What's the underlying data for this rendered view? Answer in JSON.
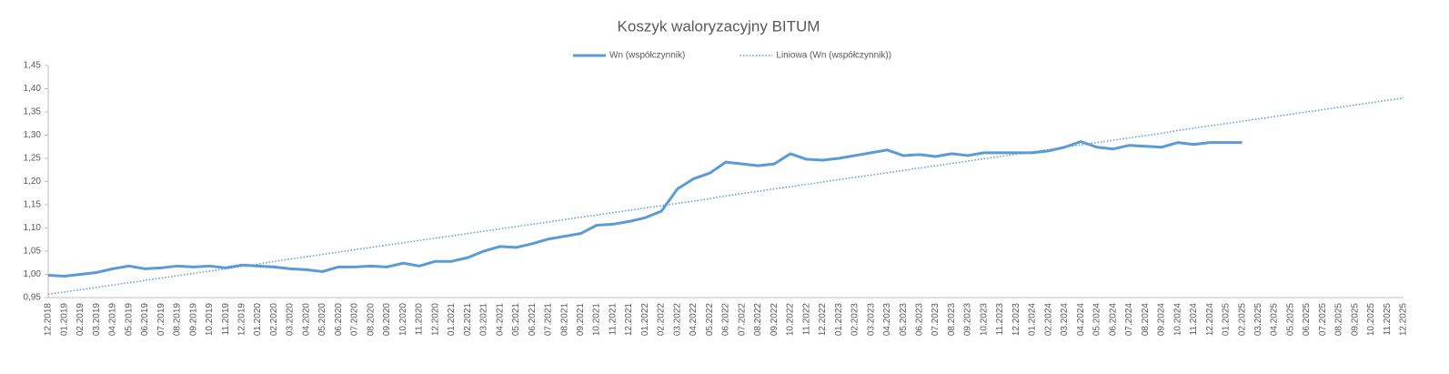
{
  "chart_data": {
    "type": "line",
    "title": "Koszyk waloryzacyjny BITUM",
    "categories": [
      "12.2018",
      "01.2019",
      "02.2019",
      "03.2019",
      "04.2019",
      "05.2019",
      "06.2019",
      "07.2019",
      "08.2019",
      "09.2019",
      "10.2019",
      "11.2019",
      "12.2019",
      "01.2020",
      "02.2020",
      "03.2020",
      "04.2020",
      "05.2020",
      "06.2020",
      "07.2020",
      "08.2020",
      "09.2020",
      "10.2020",
      "11.2020",
      "12.2020",
      "01.2021",
      "02.2021",
      "03.2021",
      "04.2021",
      "05.2021",
      "06.2021",
      "07.2021",
      "08.2021",
      "09.2021",
      "10.2021",
      "11.2021",
      "12.2021",
      "01.2022",
      "02.2022",
      "03.2022",
      "04.2022",
      "05.2022",
      "06.2022",
      "07.2022",
      "08.2022",
      "09.2022",
      "10.2022",
      "11.2022",
      "12.2022",
      "01.2023",
      "02.2023",
      "03.2023",
      "04.2023",
      "05.2023",
      "06.2023",
      "07.2023",
      "08.2023",
      "09.2023",
      "10.2023",
      "11.2023",
      "12.2023",
      "01.2024",
      "02.2024",
      "03.2024",
      "04.2024",
      "05.2024",
      "06.2024",
      "07.2024",
      "08.2024",
      "09.2024",
      "10.2024",
      "11.2024",
      "12.2024",
      "01.2025",
      "02.2025",
      "03.2025",
      "04.2025",
      "05.2025",
      "06.2025",
      "07.2025",
      "08.2025",
      "09.2025",
      "10.2025",
      "11.2025",
      "12.2025"
    ],
    "series": [
      {
        "name": "Wn (współczynnik)",
        "color": "#5b9bd5",
        "style": "solid",
        "values": [
          0.998,
          0.996,
          1.0,
          1.004,
          1.012,
          1.018,
          1.012,
          1.014,
          1.018,
          1.016,
          1.018,
          1.014,
          1.02,
          1.018,
          1.016,
          1.012,
          1.01,
          1.006,
          1.016,
          1.016,
          1.018,
          1.016,
          1.024,
          1.018,
          1.028,
          1.028,
          1.036,
          1.05,
          1.06,
          1.058,
          1.066,
          1.076,
          1.082,
          1.088,
          1.106,
          1.108,
          1.114,
          1.122,
          1.136,
          1.184,
          1.206,
          1.218,
          1.242,
          1.238,
          1.234,
          1.238,
          1.26,
          1.248,
          1.246,
          1.25,
          1.256,
          1.262,
          1.268,
          1.256,
          1.258,
          1.254,
          1.26,
          1.256,
          1.262,
          1.262,
          1.262,
          1.262,
          1.266,
          1.274,
          1.286,
          1.274,
          1.27,
          1.278,
          1.276,
          1.274,
          1.284,
          1.28,
          1.284,
          1.284,
          1.284,
          null,
          null,
          null,
          null,
          null,
          null,
          null,
          null,
          null,
          null
        ]
      },
      {
        "name": "Liniowa (Wn (współczynnik))",
        "color": "#5b9bd5",
        "style": "dotted",
        "values": [
          0.957,
          0.962,
          0.967,
          0.972,
          0.977,
          0.982,
          0.987,
          0.992,
          0.997,
          1.002,
          1.007,
          1.012,
          1.017,
          1.022,
          1.028,
          1.033,
          1.038,
          1.043,
          1.048,
          1.053,
          1.058,
          1.063,
          1.068,
          1.073,
          1.078,
          1.083,
          1.088,
          1.093,
          1.098,
          1.103,
          1.108,
          1.113,
          1.118,
          1.123,
          1.128,
          1.133,
          1.138,
          1.143,
          1.148,
          1.153,
          1.158,
          1.163,
          1.169,
          1.174,
          1.179,
          1.184,
          1.189,
          1.194,
          1.199,
          1.204,
          1.209,
          1.214,
          1.219,
          1.224,
          1.229,
          1.234,
          1.239,
          1.244,
          1.249,
          1.254,
          1.259,
          1.264,
          1.269,
          1.274,
          1.279,
          1.284,
          1.289,
          1.294,
          1.299,
          1.304,
          1.31,
          1.315,
          1.32,
          1.325,
          1.33,
          1.335,
          1.34,
          1.345,
          1.35,
          1.355,
          1.36,
          1.365,
          1.37,
          1.375,
          1.38
        ]
      }
    ],
    "ylim": [
      0.95,
      1.45
    ],
    "yticks": [
      {
        "value": 0.95,
        "label": "0,95"
      },
      {
        "value": 1.0,
        "label": "1,00"
      },
      {
        "value": 1.05,
        "label": "1,05"
      },
      {
        "value": 1.1,
        "label": "1,10"
      },
      {
        "value": 1.15,
        "label": "1,15"
      },
      {
        "value": 1.2,
        "label": "1,20"
      },
      {
        "value": 1.25,
        "label": "1,25"
      },
      {
        "value": 1.3,
        "label": "1,30"
      },
      {
        "value": 1.35,
        "label": "1,35"
      },
      {
        "value": 1.4,
        "label": "1,40"
      },
      {
        "value": 1.45,
        "label": "1,45"
      }
    ],
    "grid": false,
    "legend": "top"
  }
}
